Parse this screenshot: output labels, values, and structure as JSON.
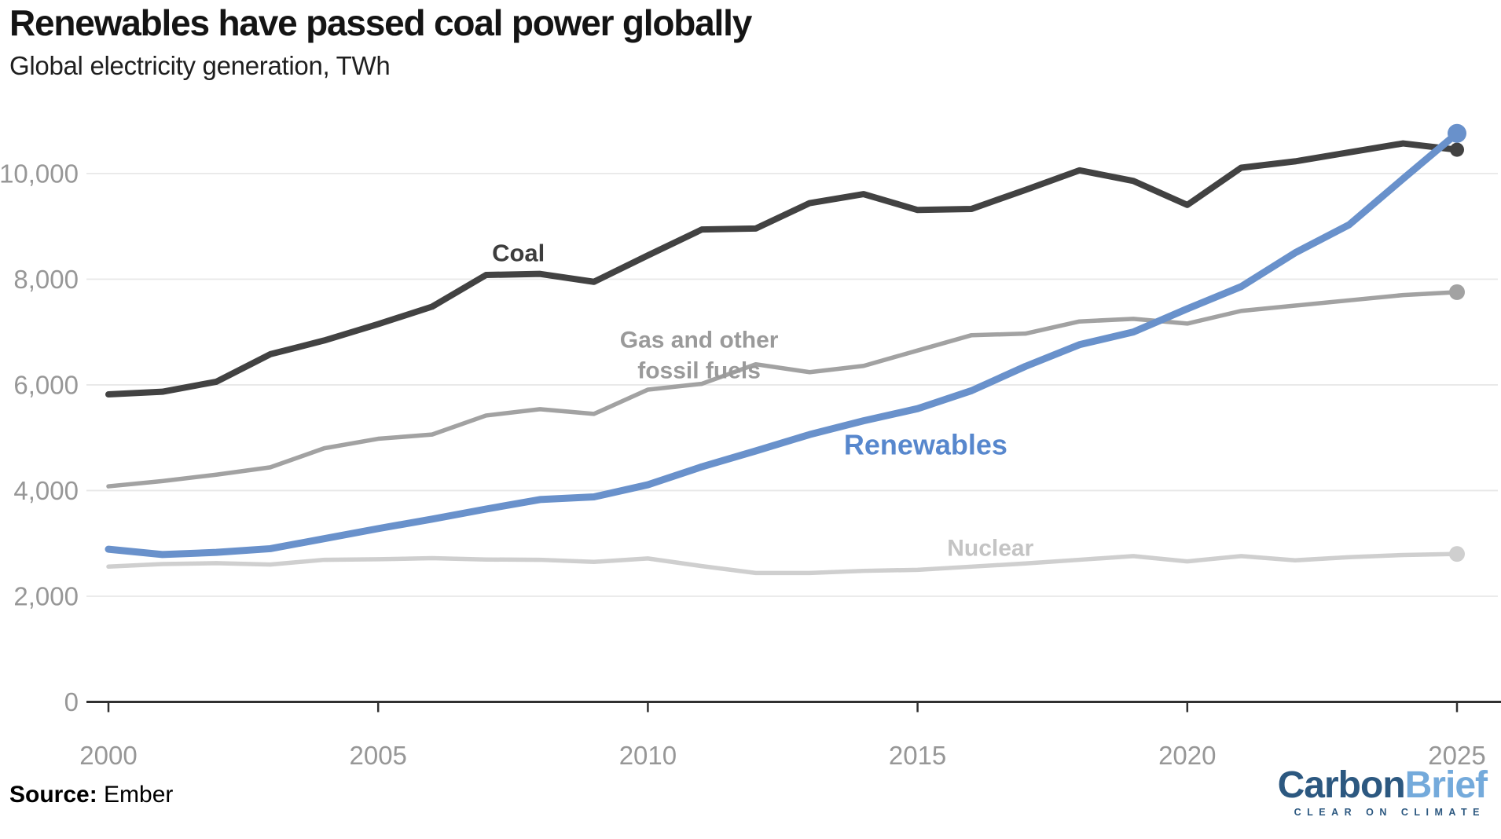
{
  "header": {
    "title": "Renewables have passed coal power globally",
    "subtitle": "Global electricity generation, TWh"
  },
  "footer": {
    "source_label": "Source:",
    "source_value": "Ember"
  },
  "logo": {
    "part1": "Carbon",
    "part2": "Brief",
    "tagline": "CLEAR ON CLIMATE",
    "color_dark": "#2c5880",
    "color_light": "#74aadb"
  },
  "chart_data": {
    "type": "line",
    "title": "Renewables have passed coal power globally",
    "subtitle": "Global electricity generation, TWh",
    "unit": "TWh",
    "x": [
      2000,
      2001,
      2002,
      2003,
      2004,
      2005,
      2006,
      2007,
      2008,
      2009,
      2010,
      2011,
      2012,
      2013,
      2014,
      2015,
      2016,
      2017,
      2018,
      2019,
      2020,
      2021,
      2022,
      2023,
      2024,
      2025
    ],
    "x_ticks": [
      2000,
      2005,
      2010,
      2015,
      2020,
      2025
    ],
    "y_ticks": [
      0,
      2000,
      4000,
      6000,
      8000,
      10000
    ],
    "xlim": [
      2000,
      2025
    ],
    "ylim": [
      0,
      11200
    ],
    "grid": "horizontal",
    "legend_position": "inline-labels",
    "colors": {
      "grid": "#e8e8e8",
      "axis": "#303030",
      "tick_label": "#979797"
    },
    "series": [
      {
        "name": "Gas and other fossil fuels",
        "color": "#a2a2a2",
        "label_color": "#9a9a9a",
        "stroke_width": 5.5,
        "end_dot_radius": 10,
        "annotation": {
          "text": [
            "Gas and other",
            "fossil fuels"
          ],
          "year": 2010.95,
          "value": 6850,
          "font_size": 30
        },
        "values": [
          4080,
          4180,
          4300,
          4440,
          4800,
          4980,
          5060,
          5420,
          5540,
          5450,
          5910,
          6020,
          6390,
          6240,
          6360,
          6650,
          6940,
          6970,
          7200,
          7250,
          7160,
          7400,
          7500,
          7600,
          7700,
          7755
        ]
      },
      {
        "name": "Nuclear",
        "color": "#cfcfcf",
        "label_color": "#c4c4c4",
        "stroke_width": 5.5,
        "end_dot_radius": 10,
        "annotation": {
          "text": [
            "Nuclear"
          ],
          "year": 2016.35,
          "value": 2910,
          "font_size": 30
        },
        "values": [
          2560,
          2610,
          2625,
          2600,
          2690,
          2700,
          2720,
          2695,
          2690,
          2650,
          2715,
          2570,
          2440,
          2440,
          2480,
          2500,
          2560,
          2620,
          2690,
          2760,
          2660,
          2760,
          2680,
          2740,
          2780,
          2800
        ]
      },
      {
        "name": "Coal",
        "color": "#424242",
        "label_color": "#3d3d3d",
        "stroke_width": 8,
        "end_dot_radius": 9,
        "annotation": {
          "text": [
            "Coal"
          ],
          "year": 2007.6,
          "value": 8500,
          "font_size": 31
        },
        "values": [
          5820,
          5870,
          6060,
          6580,
          6840,
          7150,
          7480,
          8080,
          8100,
          7950,
          8450,
          8940,
          8960,
          9440,
          9610,
          9310,
          9330,
          9690,
          10060,
          9860,
          9405,
          10110,
          10230,
          10400,
          10570,
          10450
        ]
      },
      {
        "name": "Renewables",
        "color": "#6991cb",
        "label_color": "#5787cd",
        "stroke_width": 9,
        "end_dot_radius": 12,
        "annotation": {
          "text": [
            "Renewables"
          ],
          "year": 2015.15,
          "value": 4870,
          "font_size": 36
        },
        "values": [
          2890,
          2790,
          2830,
          2900,
          3090,
          3280,
          3460,
          3650,
          3830,
          3880,
          4110,
          4450,
          4750,
          5060,
          5320,
          5550,
          5890,
          6350,
          6760,
          7000,
          7440,
          7860,
          8500,
          9030,
          9900,
          10760
        ]
      }
    ]
  }
}
